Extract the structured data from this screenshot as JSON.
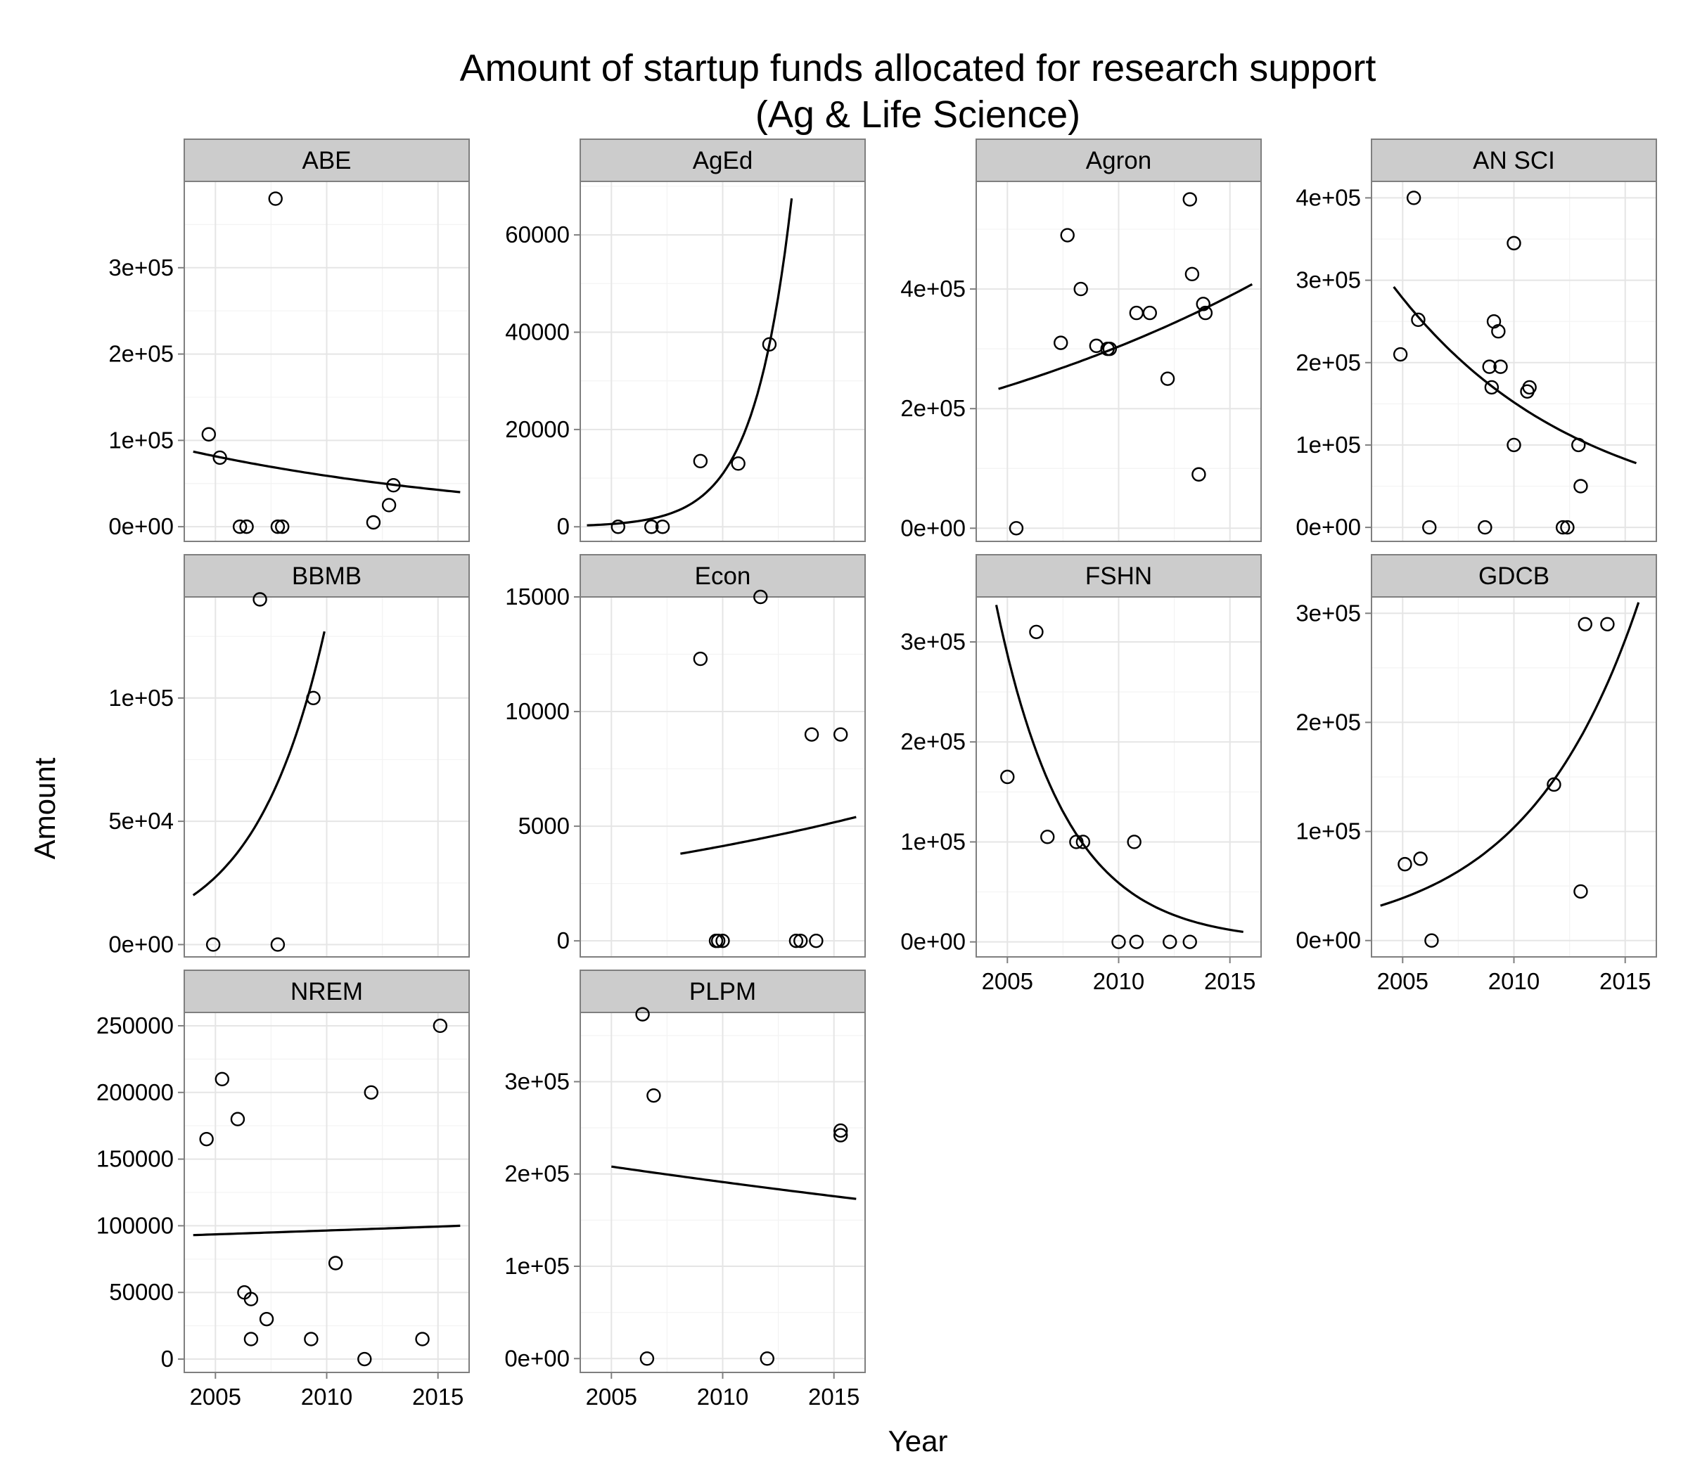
{
  "chart_data": {
    "type": "scatter",
    "title": "Amount of startup funds allocated for research support",
    "subtitle": "(Ag & Life Science)",
    "xlabel": "Year",
    "ylabel": "Amount",
    "xlim": [
      2003.6,
      2016.4
    ],
    "xticks": [
      2005,
      2010,
      2015
    ],
    "xtick_labels": [
      "2005",
      "2010",
      "2015"
    ],
    "grid": true,
    "trend": "exponential fit per panel",
    "panels": [
      {
        "name": "ABE",
        "ylim": [
          -17000,
          400000
        ],
        "yticks": [
          0,
          100000,
          200000,
          300000
        ],
        "ytick_labels": [
          "0e+00",
          "1e+05",
          "2e+05",
          "3e+05"
        ],
        "points": [
          [
            2004.7,
            107000
          ],
          [
            2005.2,
            80000
          ],
          [
            2006.1,
            0
          ],
          [
            2006.4,
            0
          ],
          [
            2007.7,
            380000
          ],
          [
            2007.8,
            0
          ],
          [
            2008.0,
            0
          ],
          [
            2012.1,
            5000
          ],
          [
            2012.8,
            25000
          ],
          [
            2013.0,
            48000
          ]
        ],
        "trend": [
          [
            2004.0,
            87000
          ],
          [
            2016.0,
            40000
          ]
        ]
      },
      {
        "name": "AgEd",
        "ylim": [
          -3000,
          71000
        ],
        "yticks": [
          0,
          20000,
          40000,
          60000
        ],
        "ytick_labels": [
          "0",
          "20000",
          "40000",
          "60000"
        ],
        "points": [
          [
            2005.3,
            0
          ],
          [
            2006.8,
            0
          ],
          [
            2007.3,
            0
          ],
          [
            2009.0,
            13500
          ],
          [
            2010.7,
            13000
          ],
          [
            2012.1,
            37500
          ]
        ],
        "trend": [
          [
            2003.9,
            300
          ],
          [
            2013.1,
            67500
          ]
        ]
      },
      {
        "name": "Agron",
        "ylim": [
          -22000,
          580000
        ],
        "yticks": [
          0,
          200000,
          400000
        ],
        "ytick_labels": [
          "0e+00",
          "2e+05",
          "4e+05"
        ],
        "points": [
          [
            2005.4,
            0
          ],
          [
            2007.4,
            310000
          ],
          [
            2007.7,
            490000
          ],
          [
            2008.3,
            400000
          ],
          [
            2009.0,
            305000
          ],
          [
            2009.5,
            300000
          ],
          [
            2009.6,
            300000
          ],
          [
            2010.8,
            360000
          ],
          [
            2011.4,
            360000
          ],
          [
            2012.2,
            250000
          ],
          [
            2013.2,
            550000
          ],
          [
            2013.3,
            425000
          ],
          [
            2013.6,
            90000
          ],
          [
            2013.8,
            375000
          ],
          [
            2013.9,
            360000
          ]
        ],
        "trend": [
          [
            2004.6,
            233000
          ],
          [
            2016.0,
            408000
          ]
        ]
      },
      {
        "name": "AN SCI",
        "ylim": [
          -17000,
          420000
        ],
        "yticks": [
          0,
          100000,
          200000,
          300000,
          400000
        ],
        "ytick_labels": [
          "0e+00",
          "1e+05",
          "2e+05",
          "3e+05",
          "4e+05"
        ],
        "points": [
          [
            2004.9,
            210000
          ],
          [
            2005.5,
            400000
          ],
          [
            2005.7,
            252000
          ],
          [
            2006.2,
            0
          ],
          [
            2008.7,
            0
          ],
          [
            2008.9,
            195000
          ],
          [
            2009.0,
            170000
          ],
          [
            2009.1,
            250000
          ],
          [
            2009.3,
            238000
          ],
          [
            2009.4,
            195000
          ],
          [
            2010.0,
            345000
          ],
          [
            2010.0,
            100000
          ],
          [
            2010.6,
            165000
          ],
          [
            2010.7,
            170000
          ],
          [
            2012.2,
            0
          ],
          [
            2012.4,
            0
          ],
          [
            2012.9,
            100000
          ],
          [
            2013.0,
            50000
          ]
        ],
        "trend": [
          [
            2004.6,
            292000
          ],
          [
            2015.5,
            78000
          ]
        ]
      },
      {
        "name": "BBMB",
        "ylim": [
          -5000,
          141000
        ],
        "yticks": [
          0,
          50000,
          100000
        ],
        "ytick_labels": [
          "0e+00",
          "5e+04",
          "1e+05"
        ],
        "points": [
          [
            2004.9,
            0
          ],
          [
            2007.0,
            140000
          ],
          [
            2007.8,
            0
          ],
          [
            2009.4,
            100000
          ]
        ],
        "trend": [
          [
            2004.0,
            20000
          ],
          [
            2009.9,
            127000
          ]
        ]
      },
      {
        "name": "Econ",
        "ylim": [
          -700,
          15000
        ],
        "yticks": [
          0,
          5000,
          10000,
          15000
        ],
        "ytick_labels": [
          "0",
          "5000",
          "10000",
          "15000"
        ],
        "points": [
          [
            2009.0,
            12300
          ],
          [
            2009.7,
            0
          ],
          [
            2009.8,
            0
          ],
          [
            2010.0,
            0
          ],
          [
            2011.7,
            15000
          ],
          [
            2013.3,
            0
          ],
          [
            2013.5,
            0
          ],
          [
            2014.0,
            9000
          ],
          [
            2014.2,
            0
          ],
          [
            2015.3,
            9000
          ]
        ],
        "trend": [
          [
            2008.1,
            3800
          ],
          [
            2016.0,
            5400
          ]
        ]
      },
      {
        "name": "FSHN",
        "ylim": [
          -15000,
          345000
        ],
        "yticks": [
          0,
          100000,
          200000,
          300000
        ],
        "ytick_labels": [
          "0e+00",
          "1e+05",
          "2e+05",
          "3e+05"
        ],
        "points": [
          [
            2005.0,
            165000
          ],
          [
            2006.3,
            310000
          ],
          [
            2006.8,
            105000
          ],
          [
            2008.1,
            100000
          ],
          [
            2008.4,
            100000
          ],
          [
            2010.0,
            0
          ],
          [
            2010.8,
            0
          ],
          [
            2010.7,
            100000
          ],
          [
            2012.3,
            0
          ],
          [
            2013.2,
            0
          ]
        ],
        "trend": [
          [
            2004.5,
            337000
          ],
          [
            2015.6,
            10000
          ]
        ]
      },
      {
        "name": "GDCB",
        "ylim": [
          -15000,
          315000
        ],
        "yticks": [
          0,
          100000,
          200000,
          300000
        ],
        "ytick_labels": [
          "0e+00",
          "1e+05",
          "2e+05",
          "3e+05"
        ],
        "points": [
          [
            2005.1,
            70000
          ],
          [
            2005.8,
            75000
          ],
          [
            2006.3,
            0
          ],
          [
            2011.8,
            143000
          ],
          [
            2013.0,
            45000
          ],
          [
            2013.2,
            290000
          ],
          [
            2014.2,
            290000
          ]
        ],
        "trend": [
          [
            2004.0,
            32000
          ],
          [
            2015.6,
            310000
          ]
        ]
      },
      {
        "name": "NREM",
        "ylim": [
          -10000,
          260000
        ],
        "yticks": [
          0,
          50000,
          100000,
          150000,
          200000,
          250000
        ],
        "ytick_labels": [
          "0",
          "50000",
          "100000",
          "150000",
          "200000",
          "250000"
        ],
        "points": [
          [
            2004.6,
            165000
          ],
          [
            2005.3,
            210000
          ],
          [
            2006.0,
            180000
          ],
          [
            2006.3,
            50000
          ],
          [
            2006.6,
            15000
          ],
          [
            2006.6,
            45000
          ],
          [
            2007.3,
            30000
          ],
          [
            2009.3,
            15000
          ],
          [
            2010.4,
            72000
          ],
          [
            2011.7,
            0
          ],
          [
            2012.0,
            200000
          ],
          [
            2014.3,
            15000
          ],
          [
            2015.1,
            250000
          ]
        ],
        "trend": [
          [
            2004.0,
            93000
          ],
          [
            2016.0,
            100000
          ]
        ]
      },
      {
        "name": "PLPM",
        "ylim": [
          -15000,
          375000
        ],
        "yticks": [
          0,
          100000,
          200000,
          300000
        ],
        "ytick_labels": [
          "0e+00",
          "1e+05",
          "2e+05",
          "3e+05"
        ],
        "points": [
          [
            2006.4,
            373000
          ],
          [
            2006.6,
            0
          ],
          [
            2006.9,
            285000
          ],
          [
            2012.0,
            0
          ],
          [
            2015.3,
            247000
          ],
          [
            2015.3,
            242000
          ]
        ],
        "trend": [
          [
            2005.0,
            208000
          ],
          [
            2016.0,
            173000
          ]
        ]
      }
    ]
  }
}
